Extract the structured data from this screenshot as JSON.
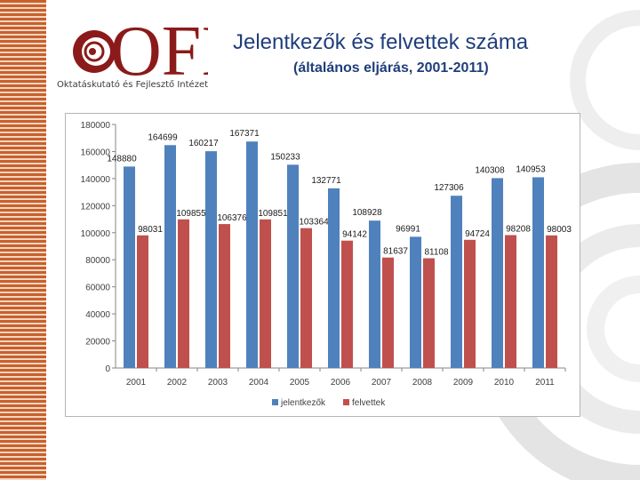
{
  "header": {
    "title": "Jelentkezők és felvettek száma",
    "subtitle": "(általános eljárás, 2001-2011)",
    "logo_text": "OFI",
    "org_name": "Oktatáskutató és Fejlesztő Intézet"
  },
  "colors": {
    "series_1": "#4f81bd",
    "series_2": "#c0504d",
    "title": "#1f3e7a",
    "logo": "#8b1a1a",
    "stripe": "#c8602c"
  },
  "chart_data": {
    "type": "bar",
    "categories": [
      "2001",
      "2002",
      "2003",
      "2004",
      "2005",
      "2006",
      "2007",
      "2008",
      "2009",
      "2010",
      "2011"
    ],
    "series": [
      {
        "name": "jelentkezők",
        "values": [
          148880,
          164699,
          160217,
          167371,
          150233,
          132771,
          108928,
          96991,
          127306,
          140308,
          140953
        ]
      },
      {
        "name": "felvettek",
        "values": [
          98031,
          109855,
          106376,
          109851,
          103364,
          94142,
          81637,
          81108,
          94724,
          98208,
          98003
        ]
      }
    ],
    "ylim": [
      0,
      180000
    ],
    "yticks": [
      "0",
      "20000",
      "40000",
      "60000",
      "80000",
      "100000",
      "120000",
      "140000",
      "160000",
      "180000"
    ],
    "grid": false,
    "legend": "bottom",
    "data_labels": true
  }
}
